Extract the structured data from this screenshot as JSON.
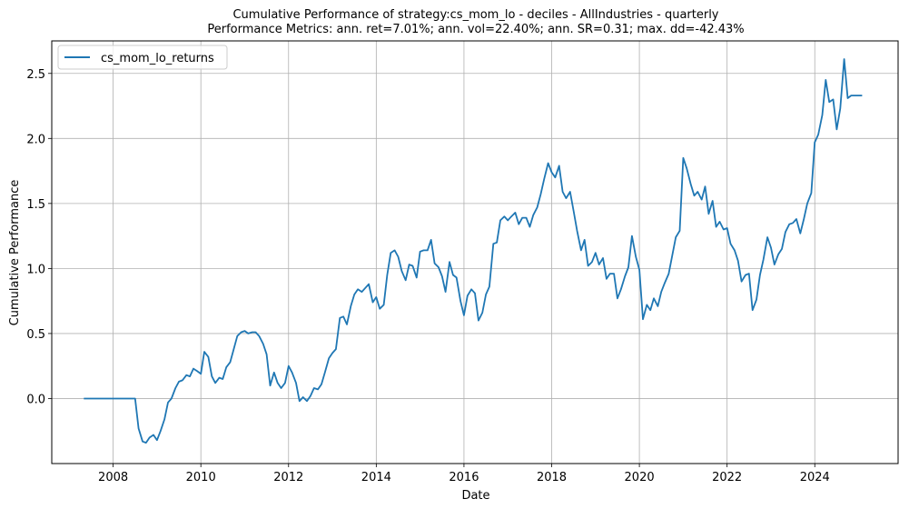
{
  "chart_data": {
    "type": "line",
    "title": "Cumulative Performance of strategy:cs_mom_lo - deciles - AllIndustries - quarterly",
    "subtitle": "Performance Metrics: ann. ret=7.01%; ann. vol=22.40%; ann. SR=0.31; max. dd=-42.43%",
    "xlabel": "Date",
    "ylabel": "Cumulative Performance",
    "grid": true,
    "legend_position": "top-left",
    "xlim": [
      2006.6,
      2025.9
    ],
    "ylim": [
      -0.5,
      2.75
    ],
    "x_ticks": [
      2008,
      2010,
      2012,
      2014,
      2016,
      2018,
      2020,
      2022,
      2024
    ],
    "y_ticks": [
      0.0,
      0.5,
      1.0,
      1.5,
      2.0,
      2.5
    ],
    "series": [
      {
        "name": "cs_mom_lo_returns",
        "color": "#1f77b4",
        "x": [
          2007.33,
          2007.42,
          2007.5,
          2007.58,
          2007.67,
          2007.75,
          2007.83,
          2007.92,
          2008.0,
          2008.08,
          2008.17,
          2008.25,
          2008.33,
          2008.42,
          2008.5,
          2008.58,
          2008.67,
          2008.75,
          2008.83,
          2008.92,
          2009.0,
          2009.08,
          2009.17,
          2009.25,
          2009.33,
          2009.42,
          2009.5,
          2009.58,
          2009.67,
          2009.75,
          2009.83,
          2009.92,
          2010.0,
          2010.08,
          2010.17,
          2010.25,
          2010.33,
          2010.42,
          2010.5,
          2010.58,
          2010.67,
          2010.75,
          2010.83,
          2010.92,
          2011.0,
          2011.08,
          2011.17,
          2011.25,
          2011.33,
          2011.42,
          2011.5,
          2011.58,
          2011.67,
          2011.75,
          2011.83,
          2011.92,
          2012.0,
          2012.08,
          2012.17,
          2012.25,
          2012.33,
          2012.42,
          2012.5,
          2012.58,
          2012.67,
          2012.75,
          2012.83,
          2012.92,
          2013.0,
          2013.08,
          2013.17,
          2013.25,
          2013.33,
          2013.42,
          2013.5,
          2013.58,
          2013.67,
          2013.75,
          2013.83,
          2013.92,
          2014.0,
          2014.08,
          2014.17,
          2014.25,
          2014.33,
          2014.42,
          2014.5,
          2014.58,
          2014.67,
          2014.75,
          2014.83,
          2014.92,
          2015.0,
          2015.08,
          2015.17,
          2015.25,
          2015.33,
          2015.42,
          2015.5,
          2015.58,
          2015.67,
          2015.75,
          2015.83,
          2015.92,
          2016.0,
          2016.08,
          2016.17,
          2016.25,
          2016.33,
          2016.42,
          2016.5,
          2016.58,
          2016.67,
          2016.75,
          2016.83,
          2016.92,
          2017.0,
          2017.08,
          2017.17,
          2017.25,
          2017.33,
          2017.42,
          2017.5,
          2017.58,
          2017.67,
          2017.75,
          2017.83,
          2017.92,
          2018.0,
          2018.08,
          2018.17,
          2018.25,
          2018.33,
          2018.42,
          2018.5,
          2018.58,
          2018.67,
          2018.75,
          2018.83,
          2018.92,
          2019.0,
          2019.08,
          2019.17,
          2019.25,
          2019.33,
          2019.42,
          2019.5,
          2019.58,
          2019.67,
          2019.75,
          2019.83,
          2019.92,
          2020.0,
          2020.08,
          2020.17,
          2020.25,
          2020.33,
          2020.42,
          2020.5,
          2020.58,
          2020.67,
          2020.75,
          2020.83,
          2020.92,
          2021.0,
          2021.08,
          2021.17,
          2021.25,
          2021.33,
          2021.42,
          2021.5,
          2021.58,
          2021.67,
          2021.75,
          2021.83,
          2021.92,
          2022.0,
          2022.08,
          2022.17,
          2022.25,
          2022.33,
          2022.42,
          2022.5,
          2022.58,
          2022.67,
          2022.75,
          2022.83,
          2022.92,
          2023.0,
          2023.08,
          2023.17,
          2023.25,
          2023.33,
          2023.42,
          2023.5,
          2023.58,
          2023.67,
          2023.75,
          2023.83,
          2023.92,
          2024.0,
          2024.08,
          2024.17,
          2024.25,
          2024.33,
          2024.42,
          2024.5,
          2024.58,
          2024.67,
          2024.75,
          2024.83,
          2024.92,
          2025.0,
          2025.08
        ],
        "values": [
          0.0,
          0.0,
          0.0,
          0.0,
          0.0,
          0.0,
          0.0,
          0.0,
          0.0,
          0.0,
          0.0,
          0.0,
          0.0,
          0.0,
          0.0,
          -0.23,
          -0.33,
          -0.34,
          -0.3,
          -0.28,
          -0.32,
          -0.25,
          -0.16,
          -0.03,
          0.0,
          0.08,
          0.13,
          0.14,
          0.18,
          0.17,
          0.23,
          0.21,
          0.19,
          0.36,
          0.32,
          0.17,
          0.12,
          0.16,
          0.15,
          0.24,
          0.28,
          0.38,
          0.48,
          0.51,
          0.52,
          0.5,
          0.51,
          0.51,
          0.48,
          0.42,
          0.34,
          0.1,
          0.2,
          0.12,
          0.08,
          0.12,
          0.25,
          0.2,
          0.12,
          -0.02,
          0.01,
          -0.02,
          0.02,
          0.08,
          0.07,
          0.11,
          0.2,
          0.31,
          0.35,
          0.38,
          0.62,
          0.63,
          0.57,
          0.71,
          0.8,
          0.84,
          0.82,
          0.85,
          0.88,
          0.74,
          0.78,
          0.69,
          0.72,
          0.95,
          1.12,
          1.14,
          1.09,
          0.98,
          0.91,
          1.03,
          1.02,
          0.93,
          1.13,
          1.14,
          1.14,
          1.22,
          1.04,
          1.01,
          0.94,
          0.82,
          1.05,
          0.95,
          0.93,
          0.75,
          0.64,
          0.79,
          0.84,
          0.81,
          0.6,
          0.66,
          0.8,
          0.86,
          1.19,
          1.2,
          1.37,
          1.4,
          1.37,
          1.4,
          1.43,
          1.34,
          1.39,
          1.39,
          1.32,
          1.41,
          1.47,
          1.57,
          1.69,
          1.81,
          1.74,
          1.7,
          1.79,
          1.59,
          1.54,
          1.59,
          1.44,
          1.29,
          1.14,
          1.22,
          1.02,
          1.05,
          1.12,
          1.03,
          1.08,
          0.92,
          0.96,
          0.96,
          0.77,
          0.84,
          0.94,
          1.01,
          1.25,
          1.09,
          0.99,
          0.61,
          0.72,
          0.68,
          0.77,
          0.71,
          0.82,
          0.89,
          0.96,
          1.1,
          1.24,
          1.29,
          1.85,
          1.77,
          1.65,
          1.56,
          1.59,
          1.53,
          1.63,
          1.42,
          1.52,
          1.32,
          1.36,
          1.3,
          1.31,
          1.19,
          1.14,
          1.06,
          0.9,
          0.95,
          0.96,
          0.68,
          0.76,
          0.95,
          1.07,
          1.24,
          1.16,
          1.03,
          1.11,
          1.15,
          1.28,
          1.34,
          1.35,
          1.38,
          1.27,
          1.38,
          1.5,
          1.58,
          1.97,
          2.03,
          2.18,
          2.45,
          2.28,
          2.3,
          2.07,
          2.23,
          2.61,
          2.31,
          2.33,
          2.33,
          2.33,
          2.33
        ]
      }
    ]
  }
}
